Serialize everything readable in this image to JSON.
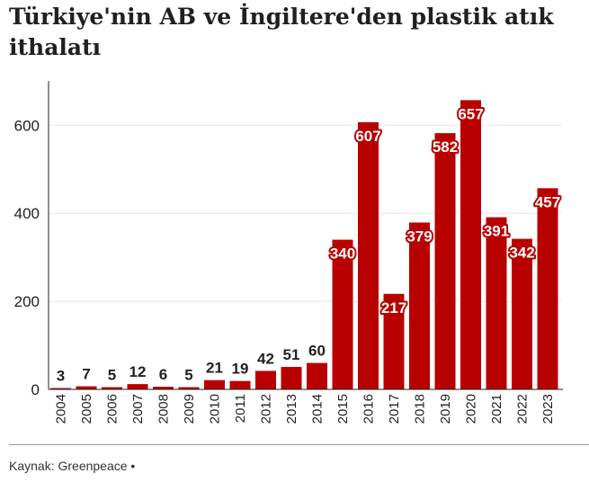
{
  "header": {
    "title": "Türkiye'nin AB ve İngiltere'den plastik atık ithalatı"
  },
  "footer": {
    "source": "Kaynak: Greenpeace",
    "bullet": "•"
  },
  "chart_data": {
    "type": "bar",
    "title": "Türkiye'nin AB ve İngiltere'den plastik atık ithalatı",
    "categories": [
      "2004",
      "2005",
      "2006",
      "2007",
      "2008",
      "2009",
      "2010",
      "2011",
      "2012",
      "2013",
      "2014",
      "2015",
      "2016",
      "2017",
      "2018",
      "2019",
      "2020",
      "2021",
      "2022",
      "2023"
    ],
    "values": [
      3,
      7,
      5,
      12,
      6,
      5,
      21,
      19,
      42,
      51,
      60,
      340,
      607,
      217,
      379,
      582,
      657,
      391,
      342,
      457
    ],
    "ylim": [
      0,
      700
    ],
    "yticks": [
      "0",
      "200",
      "400",
      "600"
    ],
    "grid": true,
    "bar_color": "#b80000"
  }
}
